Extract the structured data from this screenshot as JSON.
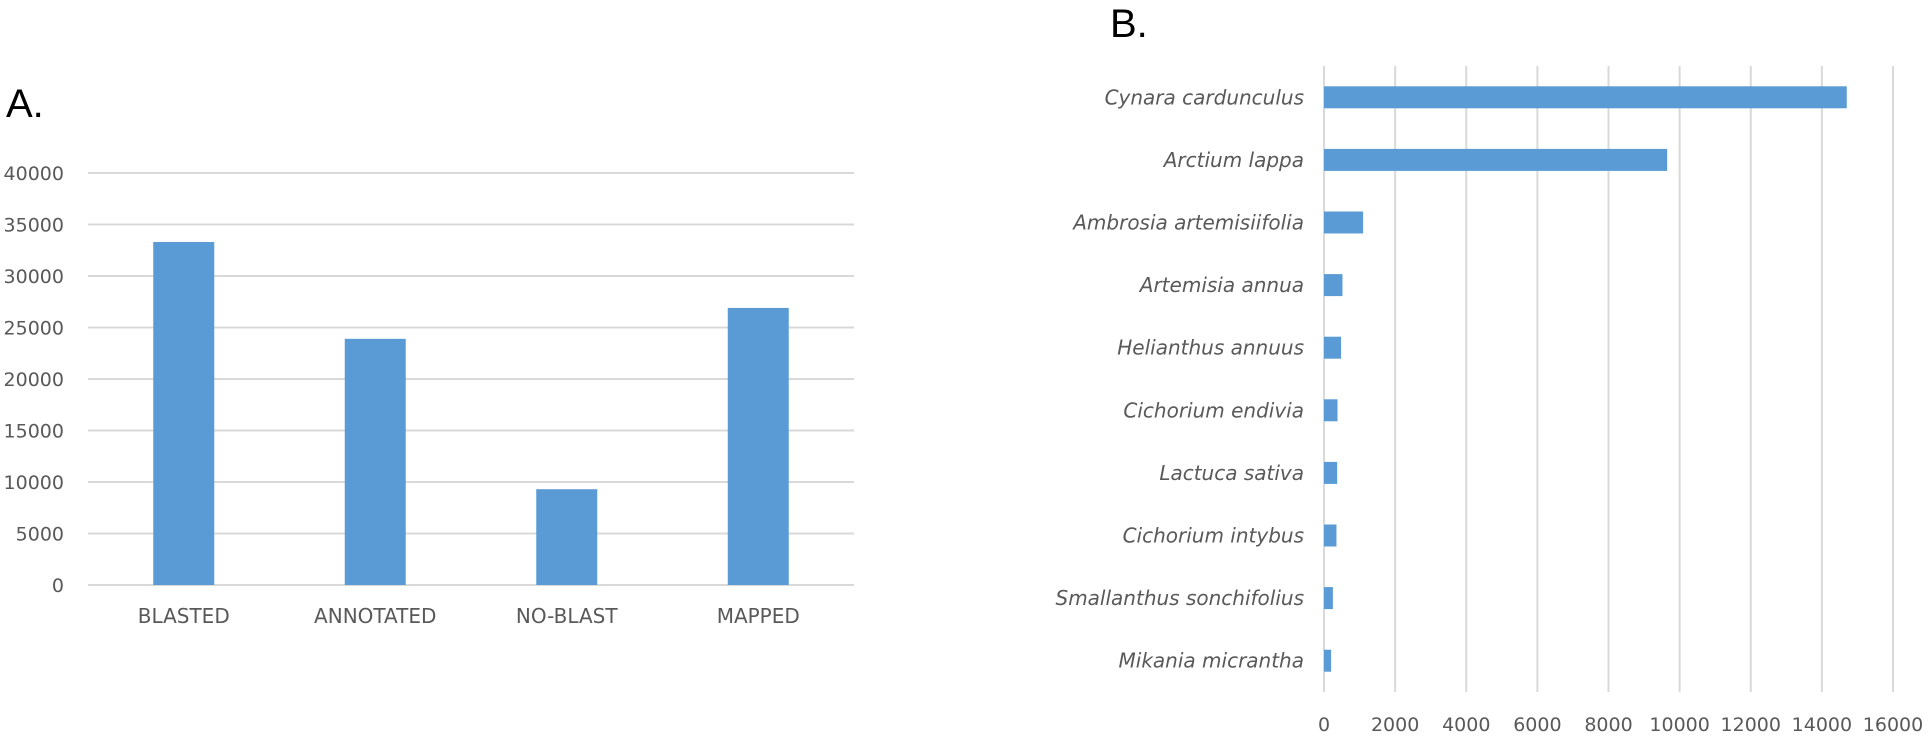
{
  "panels": {
    "a_label": "A.",
    "b_label": "B."
  },
  "colors": {
    "bar": "#5b9bd5",
    "grid": "#d9d9d9",
    "text": "#595959"
  },
  "chart_data": [
    {
      "type": "bar",
      "panel": "A.",
      "orientation": "vertical",
      "categories": [
        "BLASTED",
        "ANNOTATED",
        "NO-BLAST",
        "MAPPED"
      ],
      "values": [
        33300,
        23900,
        9300,
        26900
      ],
      "ylim": [
        0,
        40000
      ],
      "yticks": [
        "0",
        "5000",
        "10000",
        "15000",
        "20000",
        "25000",
        "30000",
        "35000",
        "40000"
      ],
      "grid": "horizontal",
      "legend": "none"
    },
    {
      "type": "bar",
      "panel": "B.",
      "orientation": "horizontal",
      "categories": [
        "Cynara cardunculus",
        "Arctium lappa",
        "Ambrosia artemisiifolia",
        "Artemisia annua",
        "Helianthus annuus",
        "Cichorium endivia",
        "Lactuca sativa",
        "Cichorium intybus",
        "Smallanthus sonchifolius",
        "Mikania micrantha"
      ],
      "values": [
        14700,
        9650,
        1100,
        520,
        480,
        380,
        370,
        350,
        250,
        200
      ],
      "xlim": [
        0,
        16000
      ],
      "xticks": [
        "0",
        "2000",
        "4000",
        "6000",
        "8000",
        "10000",
        "12000",
        "14000",
        "16000"
      ],
      "grid": "vertical",
      "legend": "none"
    }
  ]
}
